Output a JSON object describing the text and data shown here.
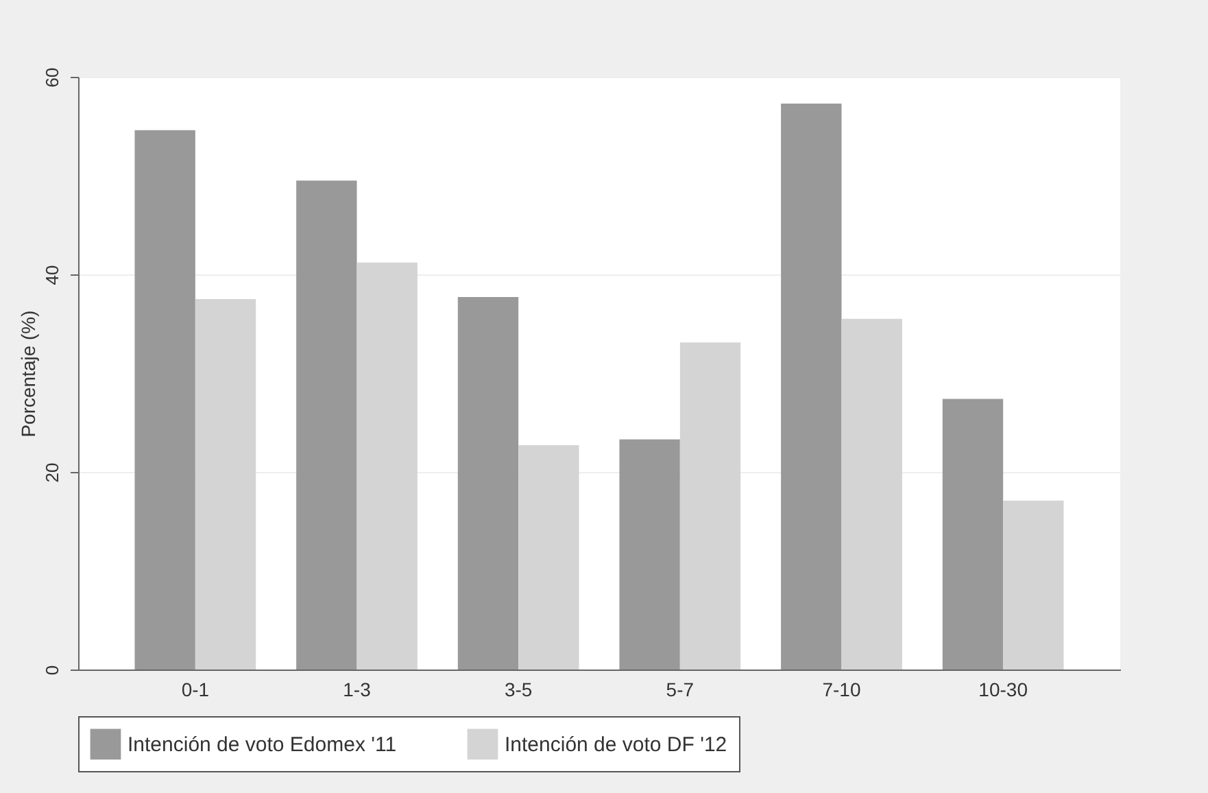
{
  "chart_data": {
    "type": "bar",
    "ylabel": "Porcentaje (%)",
    "categories": [
      "0-1",
      "1-3",
      "3-5",
      "5-7",
      "7-10",
      "10-30"
    ],
    "series": [
      {
        "name": "Intención de voto Edomex '11",
        "color": "#999999",
        "values": [
          54.6,
          49.5,
          37.7,
          23.3,
          57.3,
          27.4
        ]
      },
      {
        "name": "Intención de voto DF '12",
        "color": "#d4d4d4",
        "values": [
          37.5,
          41.2,
          22.7,
          33.1,
          35.5,
          17.1
        ]
      }
    ],
    "ylim": [
      0,
      60
    ],
    "yticks": [
      0,
      20,
      40,
      60
    ],
    "grid": "y",
    "legend": "bottom"
  }
}
